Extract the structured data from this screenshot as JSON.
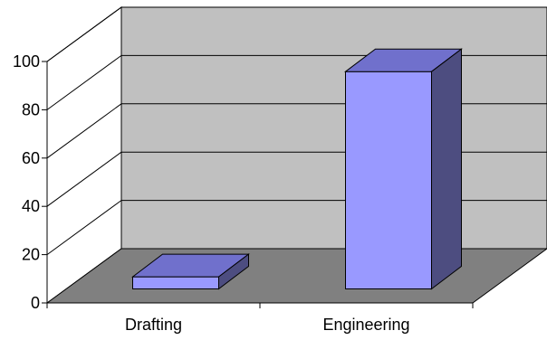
{
  "chart_data": {
    "type": "bar",
    "style": "3d-column",
    "categories": [
      "Drafting",
      "Engineering"
    ],
    "values": [
      5,
      90
    ],
    "title": "",
    "xlabel": "",
    "ylabel": "",
    "ylim": [
      0,
      100
    ],
    "yticks": [
      "0",
      "20",
      "40",
      "60",
      "80",
      "100"
    ],
    "grid": true,
    "colors": {
      "back_wall": "#c0c0c0",
      "floor": "#808080",
      "bar_front": "#9999ff",
      "bar_top": "#7070cc",
      "bar_side": "#4d4d80"
    }
  }
}
